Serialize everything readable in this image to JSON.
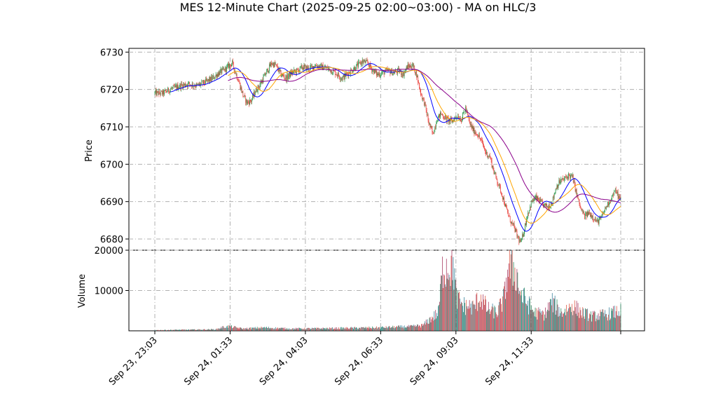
{
  "title": "MES 12-Minute Chart (2025-09-25 02:00~03:00) - MA on HLC/3",
  "chart_data": [
    {
      "type": "candlestick",
      "ylabel": "Price",
      "ylim": [
        6677,
        6731
      ],
      "yticks": [
        6680,
        6690,
        6700,
        6710,
        6720,
        6730
      ],
      "grid": true,
      "up_color": "#1a8f3c",
      "down_color": "#e8302a",
      "ma_lines": [
        {
          "color": "#0000ff",
          "period_hint": "fast"
        },
        {
          "color": "#ffa500",
          "period_hint": "medium"
        },
        {
          "color": "#8b008b",
          "period_hint": "slow"
        }
      ],
      "price_path": [
        [
          0,
          6719
        ],
        [
          12,
          6719
        ],
        [
          22,
          6720
        ],
        [
          38,
          6721
        ],
        [
          50,
          6721.5
        ],
        [
          62,
          6721
        ],
        [
          75,
          6722
        ],
        [
          85,
          6723
        ],
        [
          95,
          6724.5
        ],
        [
          105,
          6725.5
        ],
        [
          110,
          6726.5
        ],
        [
          114,
          6727
        ],
        [
          118,
          6725
        ],
        [
          124,
          6722
        ],
        [
          130,
          6718.5
        ],
        [
          136,
          6716.5
        ],
        [
          142,
          6717
        ],
        [
          148,
          6719.5
        ],
        [
          154,
          6721
        ],
        [
          160,
          6723
        ],
        [
          166,
          6725
        ],
        [
          172,
          6727
        ],
        [
          178,
          6726.5
        ],
        [
          186,
          6724
        ],
        [
          194,
          6723
        ],
        [
          202,
          6724.5
        ],
        [
          210,
          6725
        ],
        [
          218,
          6726
        ],
        [
          228,
          6725.5
        ],
        [
          236,
          6726.5
        ],
        [
          246,
          6726
        ],
        [
          256,
          6725.5
        ],
        [
          266,
          6724.5
        ],
        [
          276,
          6723
        ],
        [
          286,
          6724.5
        ],
        [
          296,
          6726
        ],
        [
          306,
          6727.5
        ],
        [
          314,
          6727
        ],
        [
          320,
          6725.5
        ],
        [
          328,
          6724
        ],
        [
          336,
          6724.5
        ],
        [
          344,
          6725
        ],
        [
          352,
          6724.5
        ],
        [
          360,
          6725
        ],
        [
          366,
          6724
        ],
        [
          372,
          6726
        ],
        [
          380,
          6726.5
        ],
        [
          386,
          6724
        ],
        [
          392,
          6719
        ],
        [
          398,
          6716
        ],
        [
          404,
          6711
        ],
        [
          410,
          6708
        ],
        [
          416,
          6712
        ],
        [
          422,
          6713.5
        ],
        [
          430,
          6712
        ],
        [
          438,
          6711.5
        ],
        [
          446,
          6713
        ],
        [
          452,
          6712
        ],
        [
          458,
          6715
        ],
        [
          464,
          6711
        ],
        [
          470,
          6709
        ],
        [
          476,
          6708
        ],
        [
          482,
          6706
        ],
        [
          488,
          6703
        ],
        [
          494,
          6702
        ],
        [
          500,
          6698
        ],
        [
          506,
          6695
        ],
        [
          512,
          6692
        ],
        [
          518,
          6688
        ],
        [
          524,
          6685
        ],
        [
          530,
          6683
        ],
        [
          536,
          6680
        ],
        [
          540,
          6679
        ],
        [
          544,
          6682
        ],
        [
          550,
          6687
        ],
        [
          556,
          6690
        ],
        [
          562,
          6691
        ],
        [
          568,
          6690
        ],
        [
          574,
          6689
        ],
        [
          580,
          6688.5
        ],
        [
          586,
          6690
        ],
        [
          592,
          6694
        ],
        [
          598,
          6695.5
        ],
        [
          604,
          6696
        ],
        [
          610,
          6697
        ],
        [
          616,
          6696.5
        ],
        [
          622,
          6692
        ],
        [
          628,
          6688
        ],
        [
          634,
          6686
        ],
        [
          640,
          6687
        ],
        [
          646,
          6686
        ],
        [
          652,
          6684.5
        ],
        [
          658,
          6685.5
        ],
        [
          664,
          6688
        ],
        [
          670,
          6690
        ],
        [
          676,
          6692
        ],
        [
          680,
          6693
        ],
        [
          684,
          6691
        ],
        [
          687,
          6690.5
        ]
      ]
    },
    {
      "type": "bar",
      "ylabel": "Volume",
      "ylim": [
        0,
        20000
      ],
      "yticks": [
        10000,
        20000
      ],
      "grid": true,
      "volume_path": [
        [
          0,
          200
        ],
        [
          90,
          400
        ],
        [
          100,
          1000
        ],
        [
          110,
          1200
        ],
        [
          130,
          600
        ],
        [
          160,
          900
        ],
        [
          200,
          600
        ],
        [
          260,
          700
        ],
        [
          330,
          900
        ],
        [
          380,
          1200
        ],
        [
          395,
          1500
        ],
        [
          418,
          5000
        ],
        [
          425,
          18000
        ],
        [
          432,
          17800
        ],
        [
          440,
          18500
        ],
        [
          445,
          9000
        ],
        [
          455,
          7000
        ],
        [
          470,
          6500
        ],
        [
          480,
          9500
        ],
        [
          490,
          6000
        ],
        [
          505,
          5000
        ],
        [
          515,
          9000
        ],
        [
          520,
          17000
        ],
        [
          526,
          18000
        ],
        [
          532,
          16500
        ],
        [
          540,
          10000
        ],
        [
          550,
          7500
        ],
        [
          560,
          5000
        ],
        [
          575,
          4500
        ],
        [
          585,
          8000
        ],
        [
          600,
          5000
        ],
        [
          615,
          7000
        ],
        [
          630,
          5000
        ],
        [
          645,
          4000
        ],
        [
          665,
          4500
        ],
        [
          687,
          5500
        ]
      ]
    }
  ],
  "x_axis": {
    "tick_labels": [
      "Sep 23, 23:03",
      "Sep 24, 01:33",
      "Sep 24, 04:03",
      "Sep 24, 06:33",
      "Sep 24, 09:03",
      "Sep 24, 11:33"
    ],
    "tick_bar_index": [
      0,
      111,
      222,
      333,
      444,
      555
    ]
  }
}
